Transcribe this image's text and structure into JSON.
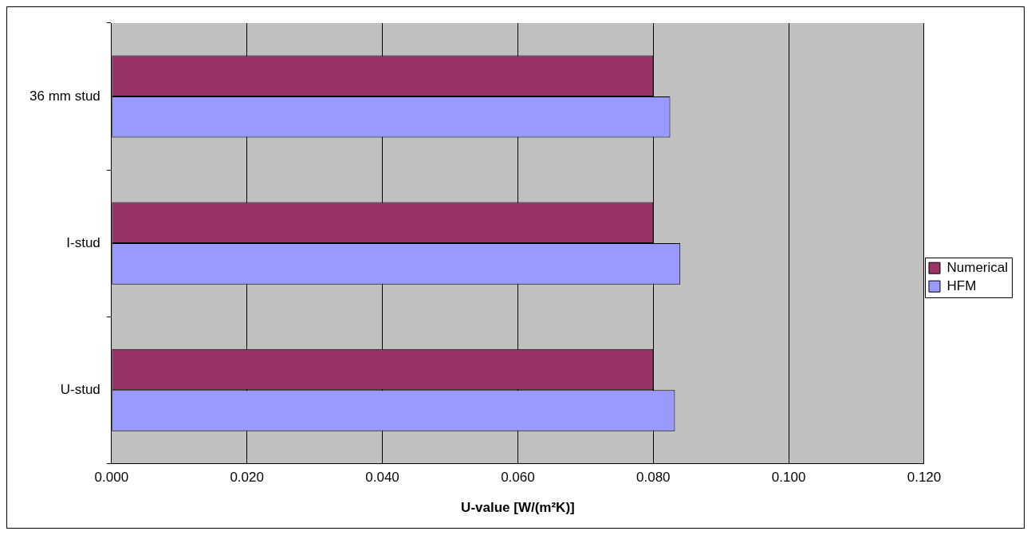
{
  "chart_data": {
    "type": "bar",
    "orientation": "horizontal",
    "xlabel": "U-value [W/(m²K)]",
    "categories": [
      "36 mm stud",
      "I-stud",
      "U-stud"
    ],
    "series": [
      {
        "name": "Numerical",
        "color": "#993366",
        "values": [
          0.08,
          0.08,
          0.08
        ]
      },
      {
        "name": "HFM",
        "color": "#9999ff",
        "values": [
          0.0825,
          0.084,
          0.0832
        ]
      }
    ],
    "xlim": [
      0,
      0.12
    ],
    "xticks": [
      {
        "value": 0,
        "label": "0.000"
      },
      {
        "value": 0.02,
        "label": "0.020"
      },
      {
        "value": 0.04,
        "label": "0.040"
      },
      {
        "value": 0.06,
        "label": "0.060"
      },
      {
        "value": 0.08,
        "label": "0.080"
      },
      {
        "value": 0.1,
        "label": "0.100"
      },
      {
        "value": 0.12,
        "label": "0.120"
      }
    ],
    "grid": "x",
    "legend": "right"
  }
}
